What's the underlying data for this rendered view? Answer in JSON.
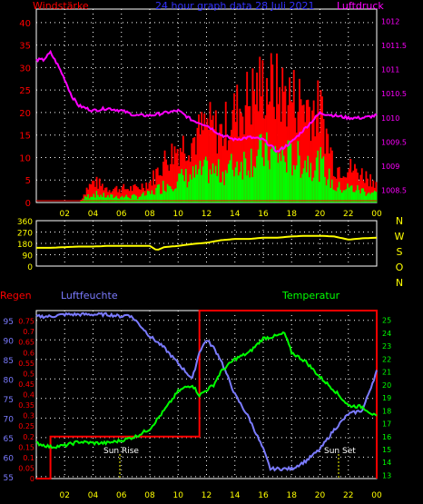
{
  "title": "24 hour graph data  28 Juli 2021",
  "colors": {
    "background": "#000000",
    "frame": "#ffffff",
    "grid": "#ffffff",
    "wind": "#ff0000",
    "gust": "#00ff00",
    "pressure": "#ff00ff",
    "direction": "#ffff00",
    "humidity": "#7b7bff",
    "temperature": "#00ff00",
    "rain": "#ff0000",
    "blue_label": "#3333ff",
    "sun_marker": "#ffff00",
    "ticks": "#ffff00"
  },
  "x_ticks": [
    "02",
    "04",
    "06",
    "08",
    "10",
    "12",
    "14",
    "16",
    "18",
    "20",
    "22",
    "00"
  ],
  "panel1": {
    "left_label": "Windstärke",
    "right_label": "Luftdruck",
    "left_ticks": [
      "0",
      "5",
      "10",
      "15",
      "20",
      "25",
      "30",
      "35",
      "40"
    ],
    "right_ticks": [
      "1008.5",
      "1009",
      "1009.5",
      "1010",
      "1010.5",
      "1011",
      "1011.5",
      "1012"
    ]
  },
  "panel2": {
    "left_ticks": [
      "0",
      "90",
      "180",
      "270",
      "360"
    ],
    "compass": [
      "N",
      "W",
      "S",
      "O",
      "N"
    ]
  },
  "panel3": {
    "rain_label": "Regen",
    "humidity_label": "Luftfeuchte",
    "temperature_label": "Temperatur",
    "humidity_ticks": [
      "55",
      "60",
      "65",
      "70",
      "75",
      "80",
      "85",
      "90",
      "95"
    ],
    "rain_ticks": [
      "0",
      "0.05",
      "0.1",
      "0.15",
      "0.2",
      "0.25",
      "0.3",
      "0.35",
      "0.4",
      "0.45",
      "0.5",
      "0.55",
      "0.6",
      "0.65",
      "0.7",
      "0.75"
    ],
    "temp_ticks": [
      "13",
      "14",
      "15",
      "16",
      "17",
      "18",
      "19",
      "20",
      "21",
      "22",
      "23",
      "24",
      "25"
    ],
    "sun_rise": "Sun Rise",
    "sun_set": "Sun Set"
  },
  "chart_data": [
    {
      "type": "bar",
      "title": "24 hour graph data  28 Juli 2021",
      "ylabel": "Windstärke",
      "ylim": [
        0,
        43
      ],
      "x_hours": [
        0,
        1,
        2,
        3,
        3.5,
        4,
        5,
        6,
        7,
        8,
        9,
        10,
        11,
        12,
        13,
        14,
        15,
        16,
        17,
        18,
        19,
        20,
        21,
        22,
        23,
        24
      ],
      "series": [
        {
          "name": "Windstärke",
          "values": [
            0,
            0,
            0,
            0,
            2,
            3,
            2,
            2,
            2,
            3,
            6,
            8,
            9,
            11,
            10,
            13,
            15,
            17,
            16,
            15,
            14,
            13,
            5,
            5,
            4,
            3
          ]
        }
      ]
    },
    {
      "type": "line",
      "ylabel": "Luftdruck",
      "ylim": [
        1008.25,
        1012.25
      ],
      "x": [
        0,
        0.5,
        1,
        1.5,
        2,
        2.5,
        3,
        4,
        5,
        6,
        7,
        8,
        9,
        10,
        11,
        12,
        13,
        14,
        15,
        16,
        17,
        18,
        19,
        20,
        21,
        22,
        23,
        24
      ],
      "series": [
        {
          "name": "Luftdruck",
          "values": [
            1011.2,
            1011.2,
            1011.35,
            1011.1,
            1010.8,
            1010.45,
            1010.25,
            1010.15,
            1010.2,
            1010.15,
            1010.05,
            1010.05,
            1010.1,
            1010.15,
            1009.95,
            1009.85,
            1009.65,
            1009.55,
            1009.6,
            1009.55,
            1009.3,
            1009.5,
            1009.8,
            1010.1,
            1010.05,
            1010.0,
            1010.0,
            1010.05
          ]
        }
      ]
    },
    {
      "type": "line",
      "ylim": [
        0,
        360
      ],
      "x": [
        0,
        1,
        2,
        3,
        4,
        5,
        6,
        7,
        8,
        8.5,
        9,
        10,
        11,
        12,
        13,
        14,
        15,
        16,
        17,
        18,
        19,
        20,
        21,
        22,
        23,
        24
      ],
      "series": [
        {
          "name": "direction",
          "values": [
            145,
            145,
            150,
            155,
            155,
            160,
            160,
            160,
            160,
            125,
            150,
            160,
            175,
            185,
            205,
            215,
            215,
            225,
            225,
            235,
            240,
            240,
            235,
            210,
            220,
            225
          ]
        }
      ]
    },
    {
      "type": "line",
      "ylabel": "Luftfeuchte",
      "ylim": [
        54.5,
        97.5
      ],
      "x": [
        0,
        1,
        2,
        3,
        4,
        5,
        6,
        6.5,
        7,
        8,
        9,
        10,
        10.5,
        11,
        11.5,
        12,
        12.5,
        13,
        14,
        15,
        16,
        16.5,
        17,
        18,
        19,
        20,
        21,
        22,
        23,
        24
      ],
      "series": [
        {
          "name": "Luftfeuchte",
          "values": [
            96,
            96,
            96.5,
            96.5,
            96.5,
            96.5,
            96,
            96.5,
            95,
            91,
            88,
            84,
            82,
            80,
            87,
            90,
            88,
            85,
            76,
            70,
            62,
            57,
            57,
            57,
            59,
            62,
            67,
            71,
            72,
            82
          ]
        }
      ]
    },
    {
      "type": "line",
      "ylabel": "Temperatur",
      "ylim": [
        12.75,
        25.75
      ],
      "x": [
        0,
        1,
        2,
        3,
        4,
        5,
        6,
        7,
        8,
        9,
        10,
        10.5,
        11,
        11.5,
        12,
        12.5,
        13,
        14,
        15,
        16,
        17,
        17.5,
        18,
        19,
        20,
        21,
        22,
        23,
        24
      ],
      "series": [
        {
          "name": "Temperatur",
          "values": [
            15.5,
            15.2,
            15.3,
            15.6,
            15.5,
            15.5,
            15.7,
            16.0,
            16.6,
            18.0,
            19.5,
            19.8,
            20.0,
            19.2,
            19.6,
            20.0,
            21.0,
            22.0,
            22.5,
            23.6,
            23.8,
            24.0,
            22.5,
            21.8,
            20.6,
            19.6,
            18.4,
            18.3,
            17.5
          ]
        }
      ]
    },
    {
      "type": "line",
      "ylabel": "Regen",
      "ylim": [
        0,
        0.8
      ],
      "x": [
        0,
        1,
        1,
        11.5,
        11.5,
        24,
        24
      ],
      "series": [
        {
          "name": "Regen",
          "values": [
            0,
            0,
            0.2,
            0.2,
            0.8,
            0.8,
            0
          ]
        }
      ]
    }
  ]
}
